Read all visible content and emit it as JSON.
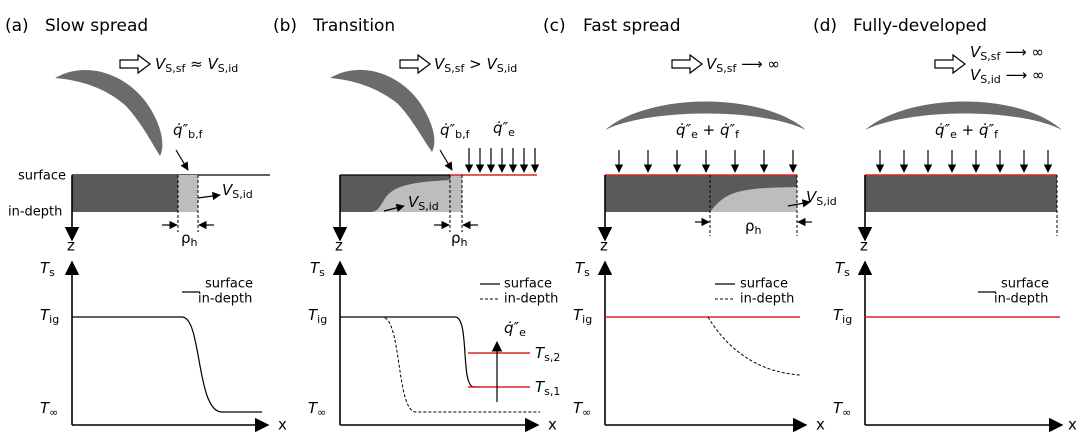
{
  "panels": [
    {
      "letter": "(a)",
      "title": "Slow spread",
      "relation": [
        {
          "text": "V",
          "sub": "S,sf"
        },
        {
          "text": " ≈ "
        },
        {
          "text": "V",
          "sub": "S,id"
        }
      ],
      "flux": [
        {
          "text": "q̇″",
          "sub": "b,f"
        }
      ],
      "surface": "surface",
      "in_depth": "in-depth",
      "velocity": [
        {
          "text": "V",
          "sub": "S,id"
        }
      ],
      "penetration": [
        {
          "text": "ρ",
          "sub": "h"
        }
      ],
      "depth_axis": "z",
      "temperature_axis": [
        {
          "text": "T",
          "sub": "s"
        }
      ],
      "legend": [
        "surface",
        "in-depth"
      ],
      "ignition": [
        {
          "text": "T",
          "sub": "ig"
        }
      ],
      "ambient": [
        {
          "text": "T",
          "sub": "∞"
        }
      ],
      "x_axis": "x"
    },
    {
      "letter": "(b)",
      "title": "Transition",
      "relation": [
        {
          "text": "V",
          "sub": "S,sf"
        },
        {
          "text": " > "
        },
        {
          "text": "V",
          "sub": "S,id"
        }
      ],
      "flux": [
        {
          "text": "q̇″",
          "sub": "b,f"
        }
      ],
      "external_flux": [
        {
          "text": "q̇″",
          "sub": "e"
        }
      ],
      "velocity": [
        {
          "text": "V",
          "sub": "S,id"
        }
      ],
      "penetration": [
        {
          "text": "ρ",
          "sub": "h"
        }
      ],
      "depth_axis": "z",
      "temperature_axis": [
        {
          "text": "T",
          "sub": "s"
        }
      ],
      "legend": [
        "surface",
        "in-depth"
      ],
      "ignition": [
        {
          "text": "T",
          "sub": "ig"
        }
      ],
      "ambient": [
        {
          "text": "T",
          "sub": "∞"
        }
      ],
      "plot_flux": [
        {
          "text": "q̇″",
          "sub": "e"
        }
      ],
      "level_2": [
        {
          "text": "T",
          "sub": "s,2"
        }
      ],
      "level_1": [
        {
          "text": "T",
          "sub": "s,1"
        }
      ],
      "x_axis": "x"
    },
    {
      "letter": "(c)",
      "title": "Fast spread",
      "relation": [
        {
          "text": "V",
          "sub": "S,sf"
        },
        {
          "text": " ⟶ ∞"
        }
      ],
      "flux": [
        {
          "text": "q̇″",
          "sub": "e"
        },
        {
          "text": " + "
        },
        {
          "text": "q̇″",
          "sub": "f"
        }
      ],
      "velocity": [
        {
          "text": "V",
          "sub": "S,id"
        }
      ],
      "penetration": [
        {
          "text": "ρ",
          "sub": "h"
        }
      ],
      "depth_axis": "z",
      "temperature_axis": [
        {
          "text": "T",
          "sub": "s"
        }
      ],
      "legend": [
        "surface",
        "in-depth"
      ],
      "ignition": [
        {
          "text": "T",
          "sub": "ig"
        }
      ],
      "ambient": [
        {
          "text": "T",
          "sub": "∞"
        }
      ],
      "x_axis": "x"
    },
    {
      "letter": "(d)",
      "title": "Fully-developed",
      "relation": [
        {
          "text": "V",
          "sub": "S,sf"
        },
        {
          "text": " ⟶ ∞"
        }
      ],
      "relation_2": [
        {
          "text": "V",
          "sub": "S,id"
        },
        {
          "text": " ⟶ ∞"
        }
      ],
      "flux": [
        {
          "text": "q̇″",
          "sub": "e"
        },
        {
          "text": " + "
        },
        {
          "text": "q̇″",
          "sub": "f"
        }
      ],
      "depth_axis": "z",
      "temperature_axis": [
        {
          "text": "T",
          "sub": "s"
        }
      ],
      "legend": [
        "surface",
        "in-depth"
      ],
      "ignition": [
        {
          "text": "T",
          "sub": "ig"
        }
      ],
      "ambient": [
        {
          "text": "T",
          "sub": "∞"
        }
      ],
      "x_axis": "x"
    }
  ]
}
